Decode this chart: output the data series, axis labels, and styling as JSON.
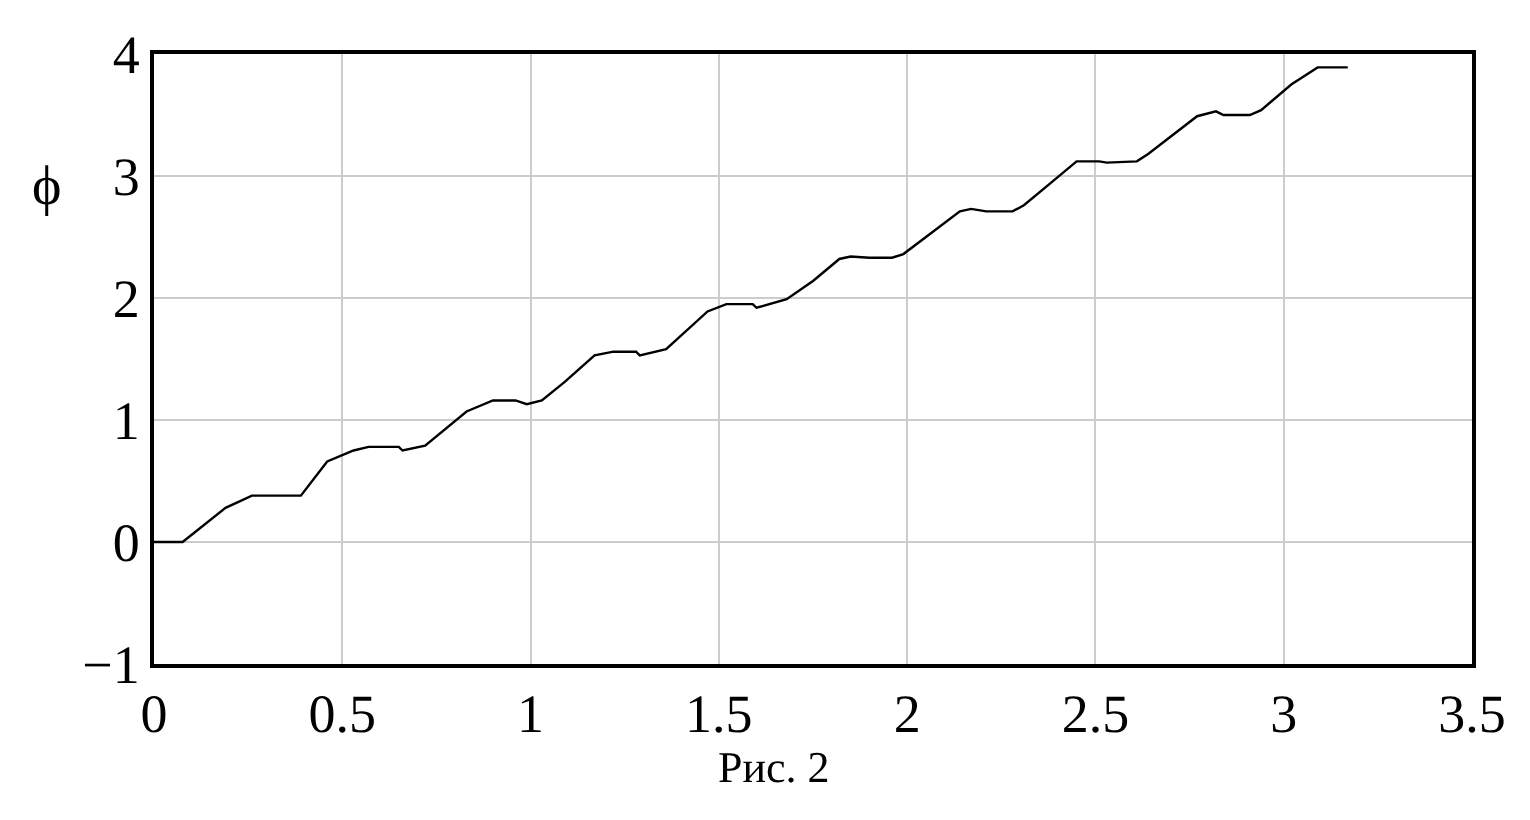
{
  "chart_data": {
    "type": "line",
    "ylabel": "ϕ",
    "annotations": [
      "Рис. 2"
    ],
    "x": [
      0,
      0.076,
      0.19,
      0.26,
      0.39,
      0.46,
      0.53,
      0.57,
      0.65,
      0.66,
      0.72,
      0.83,
      0.9,
      0.96,
      0.99,
      1.03,
      1.09,
      1.17,
      1.22,
      1.28,
      1.29,
      1.36,
      1.47,
      1.52,
      1.59,
      1.6,
      1.68,
      1.75,
      1.82,
      1.85,
      1.9,
      1.96,
      1.99,
      2.05,
      2.14,
      2.17,
      2.21,
      2.28,
      2.31,
      2.38,
      2.45,
      2.51,
      2.53,
      2.61,
      2.64,
      2.77,
      2.82,
      2.84,
      2.91,
      2.94,
      3.02,
      3.09,
      3.17
    ],
    "series": [
      {
        "color": "#000000",
        "values": [
          0,
          0,
          0.28,
          0.38,
          0.38,
          0.66,
          0.75,
          0.78,
          0.78,
          0.75,
          0.79,
          1.07,
          1.16,
          1.16,
          1.13,
          1.16,
          1.31,
          1.53,
          1.56,
          1.56,
          1.53,
          1.58,
          1.89,
          1.95,
          1.95,
          1.92,
          1.99,
          2.14,
          2.32,
          2.34,
          2.33,
          2.33,
          2.36,
          2.5,
          2.71,
          2.73,
          2.71,
          2.71,
          2.76,
          2.94,
          3.12,
          3.12,
          3.11,
          3.12,
          3.18,
          3.49,
          3.53,
          3.5,
          3.5,
          3.54,
          3.75,
          3.89,
          3.89
        ]
      }
    ],
    "xlim": [
      0,
      3.5
    ],
    "xticks": [
      0,
      0.5,
      1,
      1.5,
      2,
      2.5,
      3,
      3.5
    ],
    "ylim": [
      -1,
      4
    ],
    "yticks": [
      -1,
      0,
      1,
      2,
      3,
      4
    ],
    "grid": true,
    "marker": "none",
    "line_style": "solid"
  }
}
